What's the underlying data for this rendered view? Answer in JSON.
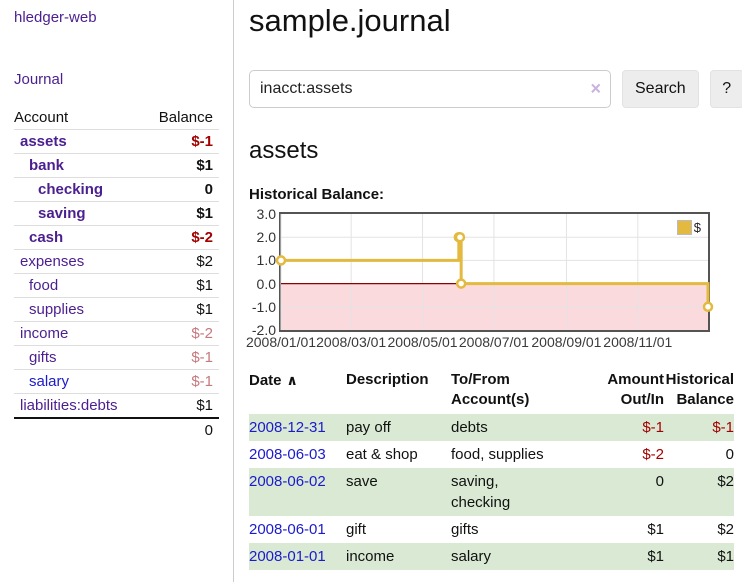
{
  "sidebar": {
    "brand": "hledger-web",
    "journal_link": "Journal",
    "columns": {
      "account": "Account",
      "balance": "Balance"
    },
    "accounts": [
      {
        "name": "assets",
        "balance": "$-1"
      },
      {
        "name": "bank",
        "balance": "$1"
      },
      {
        "name": "checking",
        "balance": "0"
      },
      {
        "name": "saving",
        "balance": "$1"
      },
      {
        "name": "cash",
        "balance": "$-2"
      },
      {
        "name": "expenses",
        "balance": "$2"
      },
      {
        "name": "food",
        "balance": "$1"
      },
      {
        "name": "supplies",
        "balance": "$1"
      },
      {
        "name": "income",
        "balance": "$-2"
      },
      {
        "name": "gifts",
        "balance": "$-1"
      },
      {
        "name": "salary",
        "balance": "$-1"
      },
      {
        "name": "liabilities:debts",
        "balance": "$1"
      }
    ],
    "total": "0"
  },
  "main": {
    "title": "sample.journal",
    "search": {
      "value": "inacct:assets",
      "clear_icon": "×",
      "search_button": "Search",
      "help_button": "?"
    },
    "account_title": "assets",
    "register": {
      "headers": {
        "date": "Date",
        "sort_icon": "∧",
        "description": "Description",
        "accounts": "To/From\nAccount(s)",
        "amount": "Amount\nOut/In",
        "balance": "Historical\nBalance"
      },
      "rows": [
        {
          "date": "2008-12-31",
          "description": "pay off",
          "accounts": "debts",
          "amount": "$-1",
          "balance": "$-1"
        },
        {
          "date": "2008-06-03",
          "description": "eat & shop",
          "accounts": "food, supplies",
          "amount": "$-2",
          "balance": "0"
        },
        {
          "date": "2008-06-02",
          "description": "save",
          "accounts": "saving,\nchecking",
          "amount": "0",
          "balance": "$2"
        },
        {
          "date": "2008-06-01",
          "description": "gift",
          "accounts": "gifts",
          "amount": "$1",
          "balance": "$2"
        },
        {
          "date": "2008-01-01",
          "description": "income",
          "accounts": "salary",
          "amount": "$1",
          "balance": "$1"
        }
      ]
    }
  },
  "chart_data": {
    "type": "line",
    "title": "Historical Balance:",
    "step": true,
    "x_range": [
      "2008/01/01",
      "2008/12/31"
    ],
    "ylim": [
      -2,
      3
    ],
    "y_ticks": [
      "3.0",
      "2.0",
      "1.0",
      "0.0",
      "-1.0",
      "-2.0"
    ],
    "x_ticks": [
      "2008/01/01",
      "2008/03/01",
      "2008/05/01",
      "2008/07/01",
      "2008/09/01",
      "2008/11/01"
    ],
    "series": [
      {
        "name": "$",
        "color": "#e3ba3f",
        "points": [
          [
            "2008/01/01",
            1
          ],
          [
            "2008/06/01",
            2
          ],
          [
            "2008/06/02",
            2
          ],
          [
            "2008/06/03",
            0
          ],
          [
            "2008/12/31",
            -1
          ]
        ]
      }
    ],
    "legend_position": "top-right",
    "grid_color": "#e3e3e3",
    "negative_region_color": "#fbdade",
    "zero_line_color": "#8b0000",
    "marker_fill": "#ffffff"
  }
}
